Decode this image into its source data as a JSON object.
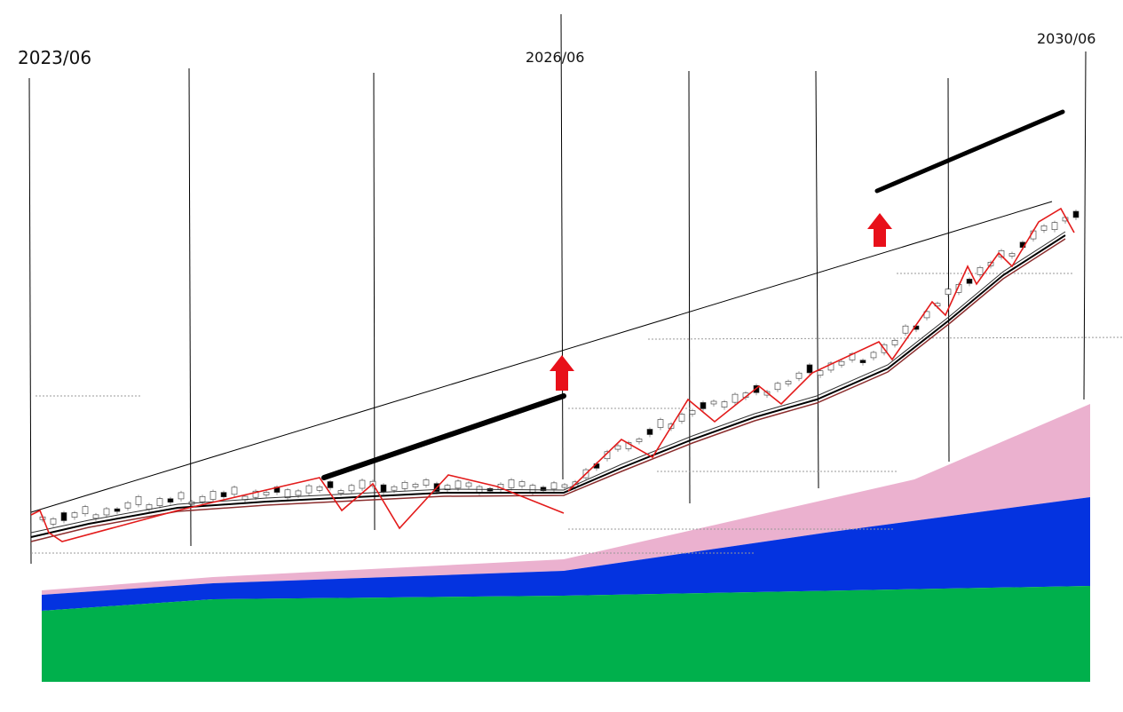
{
  "chart_data": {
    "type": "annotated-timeline",
    "x": [
      "2023/06",
      "2026/06",
      "2030/06"
    ]
  }
}
